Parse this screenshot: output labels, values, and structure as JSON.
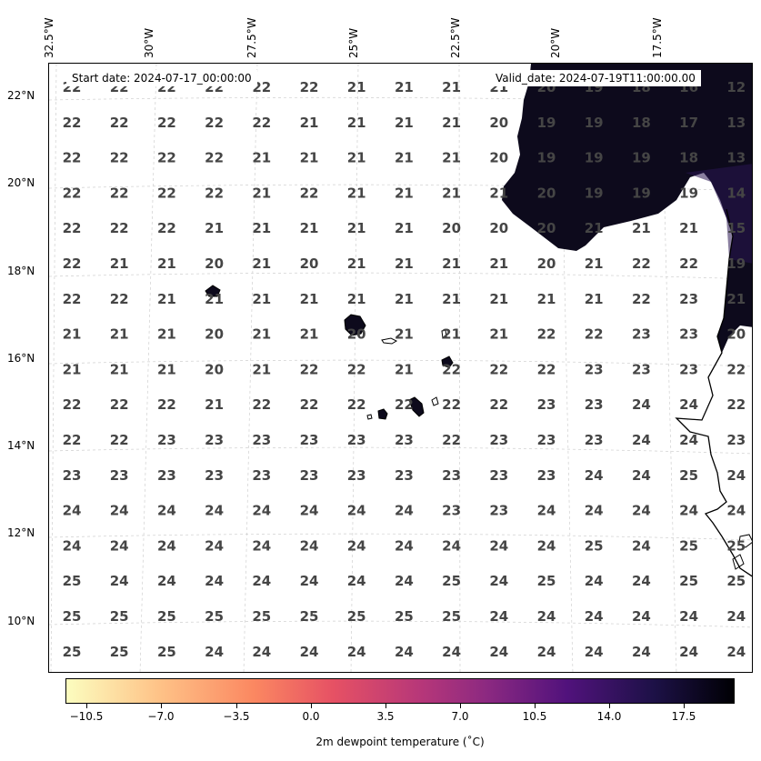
{
  "map": {
    "start_date": "Start date: 2024-07-17_00:00:00",
    "valid_date": "Valid_date: 2024-07-19T11:00:00.00",
    "lon_labels": [
      "32.5°W",
      "30°W",
      "27.5°W",
      "25°W",
      "22.5°W",
      "20°W",
      "17.5°W"
    ],
    "lat_labels": [
      "22°N",
      "20°N",
      "18°N",
      "16°N",
      "14°N",
      "12°N",
      "10°N"
    ],
    "land_color": "#0d0a1c",
    "value_grid": [
      [
        "22",
        "22",
        "22",
        "22",
        "22",
        "22",
        "21",
        "21",
        "21",
        "21",
        "20",
        "19",
        "18",
        "16",
        "12"
      ],
      [
        "22",
        "22",
        "22",
        "22",
        "22",
        "21",
        "21",
        "21",
        "21",
        "20",
        "19",
        "19",
        "18",
        "17",
        "13"
      ],
      [
        "22",
        "22",
        "22",
        "22",
        "21",
        "21",
        "21",
        "21",
        "21",
        "20",
        "19",
        "19",
        "19",
        "18",
        "13"
      ],
      [
        "22",
        "22",
        "22",
        "22",
        "21",
        "22",
        "21",
        "21",
        "21",
        "21",
        "20",
        "19",
        "19",
        "19",
        "14"
      ],
      [
        "22",
        "22",
        "22",
        "21",
        "21",
        "21",
        "21",
        "21",
        "20",
        "20",
        "20",
        "21",
        "21",
        "21",
        "15"
      ],
      [
        "22",
        "21",
        "21",
        "20",
        "21",
        "20",
        "21",
        "21",
        "21",
        "21",
        "20",
        "21",
        "22",
        "22",
        "19"
      ],
      [
        "22",
        "22",
        "21",
        "21",
        "21",
        "21",
        "21",
        "21",
        "21",
        "21",
        "21",
        "21",
        "22",
        "23",
        "21"
      ],
      [
        "21",
        "21",
        "21",
        "20",
        "21",
        "21",
        "20",
        "21",
        "21",
        "21",
        "22",
        "22",
        "23",
        "23",
        "20"
      ],
      [
        "21",
        "21",
        "21",
        "20",
        "21",
        "22",
        "22",
        "21",
        "22",
        "22",
        "22",
        "23",
        "23",
        "23",
        "22"
      ],
      [
        "22",
        "22",
        "22",
        "21",
        "22",
        "22",
        "22",
        "22",
        "22",
        "22",
        "23",
        "23",
        "24",
        "24",
        "22"
      ],
      [
        "22",
        "22",
        "23",
        "23",
        "23",
        "23",
        "23",
        "23",
        "22",
        "23",
        "23",
        "23",
        "24",
        "24",
        "23"
      ],
      [
        "23",
        "23",
        "23",
        "23",
        "23",
        "23",
        "23",
        "23",
        "23",
        "23",
        "23",
        "24",
        "24",
        "25",
        "24"
      ],
      [
        "24",
        "24",
        "24",
        "24",
        "24",
        "24",
        "24",
        "24",
        "23",
        "23",
        "24",
        "24",
        "24",
        "24",
        "24"
      ],
      [
        "24",
        "24",
        "24",
        "24",
        "24",
        "24",
        "24",
        "24",
        "24",
        "24",
        "24",
        "25",
        "24",
        "25",
        "25"
      ],
      [
        "25",
        "24",
        "24",
        "24",
        "24",
        "24",
        "24",
        "24",
        "25",
        "24",
        "25",
        "24",
        "24",
        "25",
        "25"
      ],
      [
        "25",
        "25",
        "25",
        "25",
        "25",
        "25",
        "25",
        "25",
        "25",
        "24",
        "24",
        "24",
        "24",
        "24",
        "24"
      ],
      [
        "25",
        "25",
        "25",
        "24",
        "24",
        "24",
        "24",
        "24",
        "24",
        "24",
        "24",
        "24",
        "24",
        "24",
        "24"
      ]
    ]
  },
  "colorbar": {
    "title": "2m dewpoint temperature ($^\\circ$C)",
    "title_rendered": "2m dewpoint temperature (˚C)",
    "ticks": [
      "−10.5",
      "−7.0",
      "−3.5",
      "0.0",
      "3.5",
      "7.0",
      "10.5",
      "14.0",
      "17.5"
    ],
    "colormap": "magma_r"
  }
}
